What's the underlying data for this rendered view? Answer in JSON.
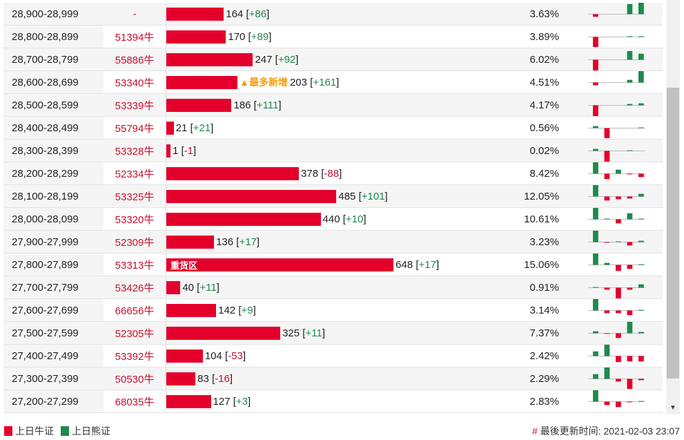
{
  "colors": {
    "bull": "#e4002b",
    "bear": "#1e8a4c",
    "tag": "#f39c12"
  },
  "rows": [
    {
      "range": "28,900-28,999",
      "bull": "-",
      "count": 164,
      "change": "+86",
      "pct": "3.63%",
      "spark": [
        -4,
        0,
        0,
        15,
        17
      ]
    },
    {
      "range": "28,800-28,899",
      "bull": "51394牛",
      "count": 170,
      "change": "+89",
      "pct": "3.89%",
      "spark": [
        -15,
        0,
        0,
        1,
        1
      ]
    },
    {
      "range": "28,700-28,799",
      "bull": "55886牛",
      "count": 247,
      "change": "+92",
      "pct": "6.02%",
      "spark": [
        -17,
        0,
        0,
        13,
        9
      ]
    },
    {
      "range": "28,600-28,699",
      "bull": "53340牛",
      "count": 203,
      "change": "+161",
      "pct": "4.51%",
      "tag": "▲最多新增",
      "spark": [
        -4,
        0,
        0,
        4,
        17
      ]
    },
    {
      "range": "28,500-28,599",
      "bull": "53339牛",
      "count": 186,
      "change": "+111",
      "pct": "4.17%",
      "spark": [
        -17,
        0,
        0,
        2,
        3
      ]
    },
    {
      "range": "28,400-28,499",
      "bull": "55794牛",
      "count": 21,
      "change": "+21",
      "pct": "0.56%",
      "spark": [
        3,
        -15,
        0,
        0,
        1
      ]
    },
    {
      "range": "28,300-28,399",
      "bull": "53328牛",
      "count": 1,
      "change": "-1",
      "pct": "0.02%",
      "spark": [
        3,
        -17,
        0,
        1,
        0
      ]
    },
    {
      "range": "28,200-28,299",
      "bull": "52334牛",
      "count": 378,
      "change": "-88",
      "pct": "8.42%",
      "spark": [
        17,
        -8,
        6,
        -1,
        -5
      ]
    },
    {
      "range": "28,100-28,199",
      "bull": "53325牛",
      "count": 485,
      "change": "+101",
      "pct": "12.05%",
      "spark": [
        17,
        -6,
        -4,
        -3,
        4
      ]
    },
    {
      "range": "28,000-28,099",
      "bull": "53320牛",
      "count": 440,
      "change": "+10",
      "pct": "10.61%",
      "spark": [
        17,
        1,
        -6,
        9,
        1
      ]
    },
    {
      "range": "27,900-27,999",
      "bull": "52309牛",
      "count": 136,
      "change": "+17",
      "pct": "3.23%",
      "spark": [
        17,
        -1,
        1,
        -5,
        2
      ]
    },
    {
      "range": "27,800-27,899",
      "bull": "53313牛",
      "count": 648,
      "change": "+17",
      "pct": "15.06%",
      "barlabel": "重货区",
      "spark": [
        17,
        3,
        -9,
        -6,
        1
      ]
    },
    {
      "range": "27,700-27,799",
      "bull": "53426牛",
      "count": 40,
      "change": "+11",
      "pct": "0.91%",
      "spark": [
        1,
        -3,
        -17,
        -3,
        5
      ]
    },
    {
      "range": "27,600-27,699",
      "bull": "66656牛",
      "count": 142,
      "change": "+9",
      "pct": "3.14%",
      "spark": [
        17,
        -4,
        -4,
        -7,
        1
      ]
    },
    {
      "range": "27,500-27,599",
      "bull": "52305牛",
      "count": 325,
      "change": "+11",
      "pct": "7.37%",
      "spark": [
        3,
        -1,
        -7,
        17,
        2
      ]
    },
    {
      "range": "27,400-27,499",
      "bull": "53392牛",
      "count": 104,
      "change": "-53",
      "pct": "2.42%",
      "spark": [
        7,
        17,
        -9,
        -8,
        -8
      ]
    },
    {
      "range": "27,300-27,399",
      "bull": "50530牛",
      "count": 83,
      "change": "-16",
      "pct": "2.29%",
      "spark": [
        7,
        17,
        -4,
        -15,
        -2
      ]
    },
    {
      "range": "27,200-27,299",
      "bull": "68035牛",
      "count": 127,
      "change": "+3",
      "pct": "2.83%",
      "spark": [
        17,
        -5,
        -8,
        -1,
        1
      ]
    }
  ],
  "legend": {
    "bull": "上日牛证",
    "bear": "上日熊证"
  },
  "footer": {
    "hash": "#",
    "label": "最後更新时间:",
    "time": "2021-02-03 23:07"
  }
}
